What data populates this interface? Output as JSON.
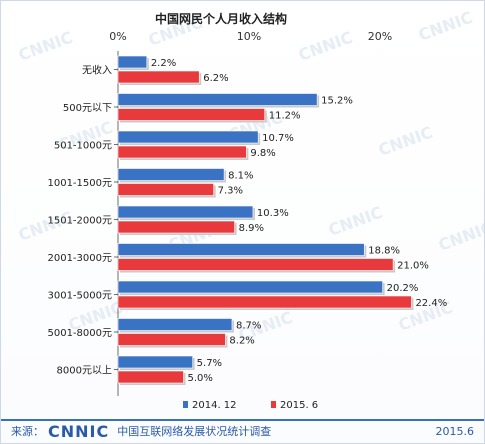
{
  "chart_data": {
    "type": "bar",
    "orientation": "horizontal",
    "title": "中国网民个人月收入结构",
    "categories": [
      "无收入",
      "500元以下",
      "501-1000元",
      "1001-1500元",
      "1501-2000元",
      "2001-3000元",
      "3001-5000元",
      "5001-8000元",
      "8000元以上"
    ],
    "series": [
      {
        "name": "2014. 12",
        "color": "#3b73c4",
        "values": [
          2.2,
          15.2,
          10.7,
          8.1,
          10.3,
          18.8,
          20.2,
          8.7,
          5.7
        ]
      },
      {
        "name": "2015. 6",
        "color": "#e8393c",
        "values": [
          6.2,
          11.2,
          9.8,
          7.3,
          8.9,
          21.0,
          22.4,
          8.2,
          5.0
        ]
      }
    ],
    "xlim": [
      0,
      25
    ],
    "ticks": [
      0,
      10,
      20
    ],
    "tick_labels": [
      "0%",
      "10%",
      "20%"
    ],
    "value_suffix": "%",
    "grid": false,
    "legend_position": "bottom"
  },
  "footer": {
    "source_label": "来源：",
    "logo_text": "CNNIC",
    "org": "中国互联网络发展状况统计调查",
    "date": "2015.6"
  },
  "watermark_text": "CNNIC"
}
